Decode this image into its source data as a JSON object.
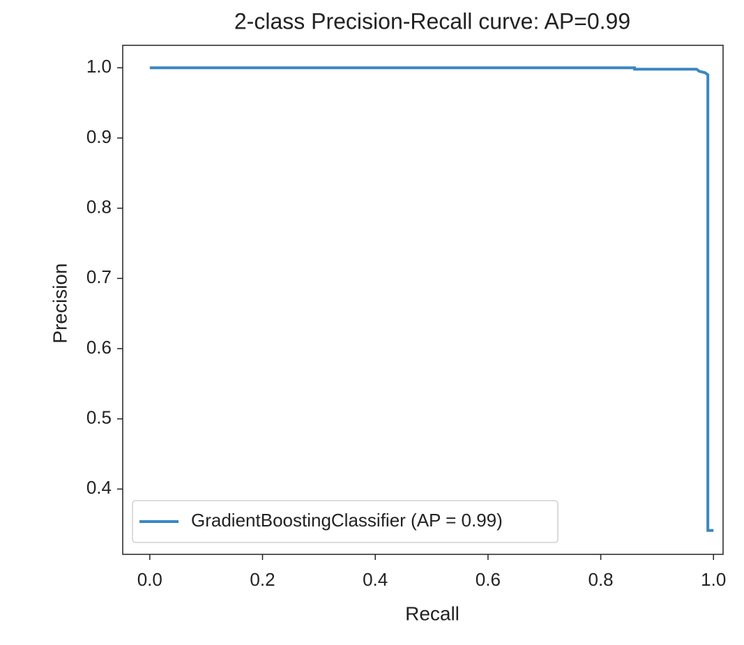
{
  "chart_data": {
    "type": "line",
    "title": "2-class Precision-Recall curve: AP=0.99",
    "xlabel": "Recall",
    "ylabel": "Precision",
    "series": [
      {
        "name": "GradientBoostingClassifier (AP = 0.99)",
        "color": "#3b87c1",
        "x": [
          0,
          0.86,
          0.86,
          0.97,
          0.975,
          0.985,
          0.99,
          0.99,
          1.0
        ],
        "values": [
          1.0,
          1.0,
          0.998,
          0.998,
          0.995,
          0.993,
          0.99,
          0.341,
          0.341
        ]
      }
    ],
    "xlim": [
      -0.048,
      1.017
    ],
    "ylim": [
      0.307,
      1.032
    ],
    "xticks": [
      {
        "value": 0,
        "label": "0.0"
      },
      0.2,
      0.4,
      0.6,
      0.8,
      {
        "value": 1,
        "label": "1.0"
      }
    ],
    "yticks": [
      0.4,
      0.5,
      0.6,
      0.7,
      0.8,
      0.9,
      {
        "value": 1,
        "label": "1.0"
      }
    ],
    "legend": "lower left"
  }
}
